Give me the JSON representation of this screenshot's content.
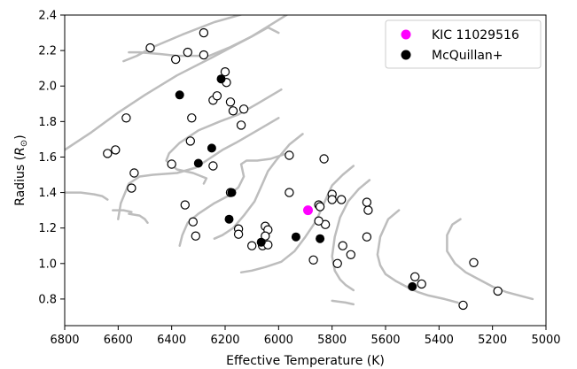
{
  "chart_data": {
    "type": "scatter",
    "xlabel": "Effective Temperature (K)",
    "ylabel_main": "Radius (",
    "ylabel_unit": "R",
    "ylabel_sub": "⊙",
    "ylabel_close": ")",
    "xlim": [
      6800,
      5000
    ],
    "ylim": [
      0.65,
      2.4
    ],
    "x_ticks": [
      6800,
      6600,
      6400,
      6200,
      6000,
      5800,
      5600,
      5400,
      5200,
      5000
    ],
    "y_ticks": [
      0.8,
      1.0,
      1.2,
      1.4,
      1.6,
      1.8,
      2.0,
      2.2,
      2.4
    ],
    "legend": {
      "placement": "top-right",
      "entries": [
        {
          "label": "KIC 11029516",
          "color": "#ff00ff",
          "style": "filled"
        },
        {
          "label": "McQuillan+",
          "color": "#000000",
          "style": "filled"
        }
      ]
    },
    "highlight": {
      "name": "KIC 11029516",
      "x": 5890,
      "y": 1.3,
      "color": "#ff00ff"
    },
    "mcquillan": [
      {
        "x": 6370,
        "y": 1.95
      },
      {
        "x": 6215,
        "y": 2.04
      },
      {
        "x": 6250,
        "y": 1.65
      },
      {
        "x": 6300,
        "y": 1.565
      },
      {
        "x": 6175,
        "y": 1.4
      },
      {
        "x": 6185,
        "y": 1.25
      },
      {
        "x": 6065,
        "y": 1.12
      },
      {
        "x": 5935,
        "y": 1.15
      },
      {
        "x": 5845,
        "y": 1.14
      },
      {
        "x": 5500,
        "y": 0.87
      }
    ],
    "open_points": [
      {
        "x": 6480,
        "y": 2.215
      },
      {
        "x": 6280,
        "y": 2.3
      },
      {
        "x": 6340,
        "y": 2.19
      },
      {
        "x": 6385,
        "y": 2.15
      },
      {
        "x": 6280,
        "y": 2.175
      },
      {
        "x": 6200,
        "y": 2.08
      },
      {
        "x": 6195,
        "y": 2.02
      },
      {
        "x": 6570,
        "y": 1.82
      },
      {
        "x": 6325,
        "y": 1.82
      },
      {
        "x": 6245,
        "y": 1.92
      },
      {
        "x": 6230,
        "y": 1.945
      },
      {
        "x": 6180,
        "y": 1.91
      },
      {
        "x": 6170,
        "y": 1.86
      },
      {
        "x": 6130,
        "y": 1.87
      },
      {
        "x": 6140,
        "y": 1.78
      },
      {
        "x": 6610,
        "y": 1.64
      },
      {
        "x": 6640,
        "y": 1.62
      },
      {
        "x": 6330,
        "y": 1.69
      },
      {
        "x": 6540,
        "y": 1.51
      },
      {
        "x": 6400,
        "y": 1.56
      },
      {
        "x": 6245,
        "y": 1.55
      },
      {
        "x": 6550,
        "y": 1.425
      },
      {
        "x": 6180,
        "y": 1.4
      },
      {
        "x": 6350,
        "y": 1.33
      },
      {
        "x": 6320,
        "y": 1.235
      },
      {
        "x": 6310,
        "y": 1.155
      },
      {
        "x": 6150,
        "y": 1.195
      },
      {
        "x": 6150,
        "y": 1.165
      },
      {
        "x": 6100,
        "y": 1.1
      },
      {
        "x": 6050,
        "y": 1.21
      },
      {
        "x": 6040,
        "y": 1.19
      },
      {
        "x": 6050,
        "y": 1.155
      },
      {
        "x": 6060,
        "y": 1.1
      },
      {
        "x": 6040,
        "y": 1.105
      },
      {
        "x": 5960,
        "y": 1.61
      },
      {
        "x": 5960,
        "y": 1.4
      },
      {
        "x": 5830,
        "y": 1.59
      },
      {
        "x": 5850,
        "y": 1.33
      },
      {
        "x": 5845,
        "y": 1.32
      },
      {
        "x": 5800,
        "y": 1.39
      },
      {
        "x": 5800,
        "y": 1.36
      },
      {
        "x": 5765,
        "y": 1.36
      },
      {
        "x": 5825,
        "y": 1.22
      },
      {
        "x": 5850,
        "y": 1.24
      },
      {
        "x": 5760,
        "y": 1.1
      },
      {
        "x": 5730,
        "y": 1.05
      },
      {
        "x": 5780,
        "y": 1.0
      },
      {
        "x": 5870,
        "y": 1.02
      },
      {
        "x": 5670,
        "y": 1.345
      },
      {
        "x": 5665,
        "y": 1.3
      },
      {
        "x": 5670,
        "y": 1.15
      },
      {
        "x": 5490,
        "y": 0.925
      },
      {
        "x": 5465,
        "y": 0.885
      },
      {
        "x": 5270,
        "y": 1.005
      },
      {
        "x": 5180,
        "y": 0.845
      },
      {
        "x": 5310,
        "y": 0.765
      }
    ],
    "tracks": [
      [
        [
          5990,
          2.5
        ],
        [
          6100,
          2.42
        ],
        [
          6240,
          2.36
        ],
        [
          6360,
          2.29
        ],
        [
          6470,
          2.22
        ],
        [
          6530,
          2.17
        ],
        [
          6580,
          2.14
        ]
      ],
      [
        [
          6000,
          2.3
        ],
        [
          6040,
          2.33
        ],
        [
          6100,
          2.28
        ],
        [
          6180,
          2.22
        ],
        [
          6260,
          2.17
        ],
        [
          6380,
          2.17
        ],
        [
          6440,
          2.18
        ],
        [
          6520,
          2.19
        ],
        [
          6560,
          2.19
        ]
      ],
      [
        [
          5960,
          2.41
        ],
        [
          6100,
          2.28
        ],
        [
          6250,
          2.16
        ],
        [
          6380,
          2.06
        ],
        [
          6500,
          1.95
        ],
        [
          6600,
          1.85
        ],
        [
          6700,
          1.74
        ],
        [
          6800,
          1.64
        ]
      ],
      [
        [
          5990,
          1.98
        ],
        [
          6080,
          1.9
        ],
        [
          6150,
          1.84
        ],
        [
          6220,
          1.8
        ],
        [
          6300,
          1.75
        ],
        [
          6370,
          1.68
        ],
        [
          6410,
          1.62
        ],
        [
          6420,
          1.58
        ],
        [
          6380,
          1.53
        ],
        [
          6320,
          1.51
        ],
        [
          6270,
          1.48
        ],
        [
          6280,
          1.45
        ]
      ],
      [
        [
          6000,
          1.82
        ],
        [
          6080,
          1.75
        ],
        [
          6160,
          1.68
        ],
        [
          6210,
          1.64
        ],
        [
          6260,
          1.59
        ],
        [
          6310,
          1.54
        ],
        [
          6380,
          1.51
        ],
        [
          6470,
          1.5
        ],
        [
          6520,
          1.49
        ],
        [
          6560,
          1.45
        ],
        [
          6590,
          1.34
        ],
        [
          6600,
          1.25
        ]
      ],
      [
        [
          5970,
          1.62
        ],
        [
          6030,
          1.59
        ],
        [
          6080,
          1.58
        ],
        [
          6120,
          1.58
        ],
        [
          6140,
          1.56
        ],
        [
          6130,
          1.49
        ],
        [
          6150,
          1.43
        ],
        [
          6190,
          1.38
        ],
        [
          6240,
          1.34
        ],
        [
          6300,
          1.28
        ],
        [
          6340,
          1.23
        ],
        [
          6360,
          1.16
        ],
        [
          6370,
          1.1
        ]
      ],
      [
        [
          6800,
          1.4
        ],
        [
          6740,
          1.4
        ],
        [
          6690,
          1.39
        ],
        [
          6660,
          1.38
        ],
        [
          6640,
          1.36
        ]
      ],
      [
        [
          6550,
          1.29
        ],
        [
          6580,
          1.3
        ],
        [
          6620,
          1.3
        ]
      ],
      [
        [
          6490,
          1.23
        ],
        [
          6500,
          1.25
        ],
        [
          6520,
          1.27
        ],
        [
          6560,
          1.28
        ]
      ],
      [
        [
          5910,
          1.73
        ],
        [
          5960,
          1.67
        ],
        [
          6010,
          1.58
        ],
        [
          6040,
          1.52
        ],
        [
          6060,
          1.45
        ],
        [
          6090,
          1.35
        ],
        [
          6130,
          1.27
        ],
        [
          6170,
          1.2
        ],
        [
          6210,
          1.16
        ],
        [
          6240,
          1.14
        ]
      ],
      [
        [
          5720,
          1.55
        ],
        [
          5760,
          1.5
        ],
        [
          5800,
          1.44
        ],
        [
          5830,
          1.34
        ],
        [
          5860,
          1.24
        ],
        [
          5900,
          1.15
        ],
        [
          5940,
          1.07
        ],
        [
          5990,
          1.01
        ],
        [
          6050,
          0.98
        ],
        [
          6100,
          0.96
        ],
        [
          6140,
          0.95
        ]
      ],
      [
        [
          5660,
          1.47
        ],
        [
          5700,
          1.42
        ],
        [
          5740,
          1.35
        ],
        [
          5770,
          1.26
        ],
        [
          5790,
          1.15
        ],
        [
          5800,
          1.04
        ],
        [
          5790,
          0.96
        ],
        [
          5770,
          0.91
        ],
        [
          5750,
          0.88
        ],
        [
          5720,
          0.85
        ]
      ],
      [
        [
          5550,
          1.3
        ],
        [
          5590,
          1.25
        ],
        [
          5620,
          1.15
        ],
        [
          5630,
          1.05
        ],
        [
          5620,
          0.99
        ],
        [
          5600,
          0.94
        ],
        [
          5560,
          0.9
        ],
        [
          5510,
          0.86
        ],
        [
          5480,
          0.84
        ],
        [
          5440,
          0.82
        ],
        [
          5380,
          0.8
        ],
        [
          5330,
          0.78
        ]
      ],
      [
        [
          5320,
          1.25
        ],
        [
          5350,
          1.22
        ],
        [
          5370,
          1.16
        ],
        [
          5370,
          1.07
        ],
        [
          5340,
          1.0
        ],
        [
          5300,
          0.95
        ],
        [
          5250,
          0.91
        ],
        [
          5200,
          0.87
        ],
        [
          5150,
          0.84
        ],
        [
          5100,
          0.82
        ],
        [
          5050,
          0.8
        ]
      ],
      [
        [
          5800,
          0.79
        ],
        [
          5750,
          0.78
        ],
        [
          5720,
          0.77
        ]
      ]
    ]
  }
}
